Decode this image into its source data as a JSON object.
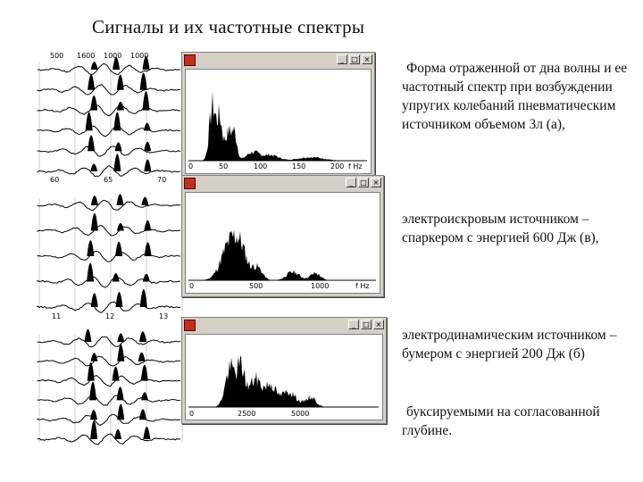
{
  "slide_title": "Сигналы и их частотные спектры",
  "descriptions": [
    "Форма отраженной от дна волны и ее частотный спектр при возбуждении упругих колебаний пневматическим источником объемом 3л (а),",
    "электроискровым источником – спаркером с энергией 600 Дж (в),",
    "электродинамическим источником – бумером с энергией 200 Дж (б)",
    "буксируемыми на согласованной глубине."
  ],
  "window_buttons": {
    "minimize": "_",
    "maximize": "□",
    "close": "×"
  },
  "spectrum_windows": [
    {
      "name": "airgun",
      "axis_labels": [
        "0",
        "50",
        "100",
        "150",
        "200"
      ],
      "unit": "f Hz"
    },
    {
      "name": "sparker",
      "axis_labels": [
        "0",
        "500",
        "1000"
      ],
      "unit": "f Hz"
    },
    {
      "name": "boomer",
      "axis_labels": [
        "0",
        "2500",
        "5000"
      ],
      "unit": "f Hz"
    }
  ],
  "seismograms": [
    {
      "name": "airgun",
      "top_labels": [
        "500",
        "1600",
        "1000",
        "1000"
      ],
      "bottom_labels": [
        "60",
        "65",
        "70"
      ]
    },
    {
      "name": "sparker",
      "bottom_labels": [
        "11",
        "12",
        "13"
      ]
    },
    {
      "name": "boomer"
    }
  ],
  "colors": {
    "window_frame": "#d4d0c8",
    "spectrum_fill": "#000000",
    "background": "#ffffff"
  }
}
